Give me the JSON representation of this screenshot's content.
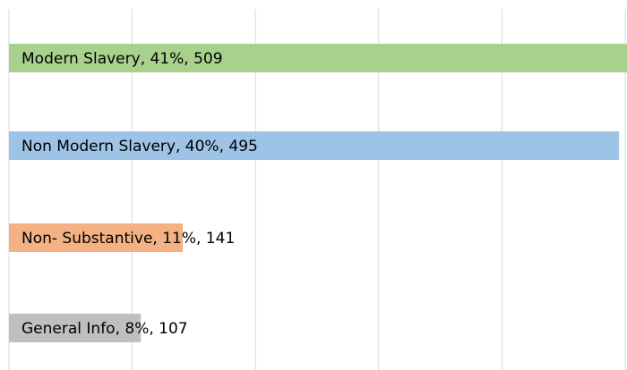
{
  "chart_data": {
    "type": "barh",
    "value_labels": [
      "Modern Slavery, 41%, 509",
      "Non Modern Slavery, 40%, 495",
      "Non- Substantive, 11%, 141",
      "General Info, 8%, 107"
    ],
    "values": [
      509,
      495,
      141,
      107
    ],
    "colors": [
      "#a9d18e",
      "#9dc3e6",
      "#f4b183",
      "#bfbfbf"
    ],
    "xlim": [
      0,
      500
    ],
    "xticks": [
      0,
      100,
      200,
      300,
      400,
      500
    ],
    "grid": true
  }
}
